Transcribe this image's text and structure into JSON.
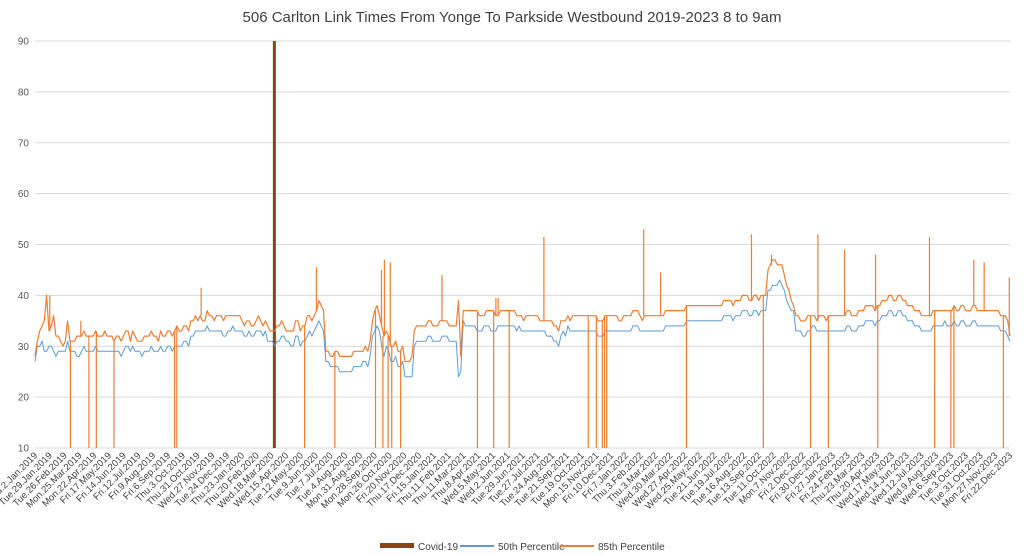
{
  "chart_data": {
    "type": "line",
    "title": "506 Carlton Link Times From Yonge To Parkside Westbound 2019-2023 8 to 9am",
    "xlabel": "",
    "ylabel": "",
    "ylim": [
      10,
      90
    ],
    "yticks": [
      10,
      20,
      30,
      40,
      50,
      60,
      70,
      80,
      90
    ],
    "grid": true,
    "legend_position": "bottom",
    "colors": {
      "covid": "#8B4513",
      "p50": "#5B9BD5",
      "p85": "#ED7D31"
    },
    "x_tick_labels": [
      "Wed.2.Jan.2019",
      "Tue.29.Jan.2019",
      "Tue.26.Feb.2019",
      "Mon.25.Mar.2019",
      "Mon.22.Apr.2019",
      "Fri.17.May.2019",
      "Fri.14.Jun.2019",
      "Fri.12.Jul.2019",
      "Fri.9.Aug.2019",
      "Fri.6.Sep.2019",
      "Thu.3.Oct.2019",
      "Thu.31.Oct.2019",
      "Wed.27.Nov.2019",
      "Tue.24.Dec.2019",
      "Thu.23.Jan.2020",
      "Thu.20.Feb.2020",
      "Wed.18.Mar.2020",
      "Wed.15.Apr.2020",
      "Tue.12.May.2020",
      "Tue.9.Jun.2020",
      "Tue.7.Jul.2020",
      "Tue.4.Aug.2020",
      "Mon.31.Aug.2020",
      "Mon.28.Sep.2020",
      "Mon.26.Oct.2020",
      "Fri.20.Nov.2020",
      "Thu.17.Dec.2020",
      "Fri.15.Jan.2021",
      "Thu.11.Feb.2021",
      "Thu.11.Mar.2021",
      "Thu.8.Apr.2021",
      "Wed.5.May.2021",
      "Wed.2.Jun.2021",
      "Tue.29.Jun.2021",
      "Tue.27.Jul.2021",
      "Tue.24.Aug.2021",
      "Tue.21.Sep.2021",
      "Tue.19.Oct.2021",
      "Mon.15.Nov.2021",
      "Fri.10.Dec.2021",
      "Fri.7.Jan.2022",
      "Thu.3.Feb.2022",
      "Thu.3.Mar.2022",
      "Wed.30.Mar.2022",
      "Wed.27.Apr.2022",
      "Wed.25.May.2022",
      "Tue.21.Jun.2022",
      "Tue.19.Jul.2022",
      "Tue.16.Aug.2022",
      "Tue.13.Sep.2022",
      "Tue.11.Oct.2022",
      "Mon.7.Nov.2022",
      "Fri.2.Dec.2022",
      "Fri.30.Dec.2022",
      "Fri.27.Jan.2023",
      "Fri.24.Feb.2023",
      "Thu.23.Mar.2023",
      "Thu.20.Apr.2023",
      "Wed.17.May.2023",
      "Wed.14.Jun.2023",
      "Wed.12.Jul.2023",
      "Wed.9.Aug.2023",
      "Wed.6.Sep.2023",
      "Tue.3.Oct.2023",
      "Tue.31.Oct.2023",
      "Mon.27.Nov.2023",
      "Fri.22.Dec.2023"
    ],
    "covid_marker": {
      "x": "Wed.18.Mar.2020",
      "ymin": 10,
      "ymax": 90
    },
    "series": [
      {
        "name": "50th Percentile",
        "values": [
          27,
          30,
          30,
          31,
          29,
          29,
          30,
          30,
          29,
          28,
          29,
          29,
          29,
          29,
          31,
          29,
          29,
          29,
          28,
          28,
          29,
          30,
          29,
          29,
          29,
          29,
          30,
          29,
          29,
          29,
          29,
          29,
          29,
          29,
          29,
          29,
          29,
          28,
          29,
          30,
          30,
          29,
          30,
          29,
          29,
          29,
          28,
          29,
          29,
          29,
          30,
          29,
          29,
          29,
          30,
          29,
          29,
          30,
          30,
          29,
          30,
          30,
          30,
          30,
          31,
          31,
          30,
          32,
          32,
          33,
          33,
          33,
          33,
          33,
          34,
          33,
          33,
          33,
          33,
          33,
          33,
          32,
          32,
          33,
          33,
          34,
          33,
          33,
          33,
          33,
          32,
          32,
          33,
          32,
          32,
          33,
          33,
          33,
          32,
          33,
          31,
          31,
          31,
          30,
          31,
          31,
          32,
          32,
          31,
          31,
          30,
          30,
          32,
          32,
          30,
          31,
          31,
          32,
          33,
          32,
          33,
          34,
          35,
          34,
          33,
          27,
          27,
          26,
          26,
          26,
          26,
          25,
          25,
          25,
          25,
          25,
          25,
          26,
          26,
          26,
          26,
          27,
          27,
          26,
          28,
          32,
          33,
          34,
          33,
          30,
          28,
          30,
          29,
          27,
          27,
          28,
          26,
          26,
          27,
          24,
          24,
          24,
          24,
          30,
          31,
          31,
          31,
          31,
          31,
          32,
          32,
          31,
          31,
          31,
          31,
          32,
          32,
          32,
          31,
          31,
          31,
          31,
          24,
          25,
          35,
          34,
          34,
          34,
          34,
          34,
          33,
          33,
          33,
          34,
          34,
          34,
          33,
          33,
          33,
          34,
          34,
          34,
          34,
          34,
          34,
          34,
          34,
          33,
          34,
          33,
          33,
          33,
          33,
          33,
          33,
          33,
          33,
          33,
          33,
          33,
          32,
          32,
          32,
          31,
          31,
          30,
          32,
          33,
          32,
          34,
          33,
          33,
          33,
          33,
          33,
          33,
          33,
          33,
          33,
          33,
          33,
          33,
          32,
          32,
          32,
          33,
          33,
          33,
          33,
          33,
          33,
          33,
          33,
          33,
          33,
          33,
          33,
          34,
          34,
          34,
          33,
          33,
          33,
          33,
          33,
          33,
          33,
          33,
          33,
          33,
          33,
          34,
          34,
          34,
          34,
          34,
          34,
          34,
          34,
          34,
          35,
          35,
          35,
          35,
          35,
          35,
          35,
          35,
          35,
          35,
          35,
          35,
          35,
          35,
          35,
          35,
          36,
          36,
          36,
          36,
          35,
          36,
          36,
          36,
          37,
          37,
          37,
          36,
          36,
          37,
          37,
          36,
          37,
          37,
          37,
          41,
          41,
          42,
          42,
          42,
          43,
          42,
          41,
          39,
          38,
          37,
          37,
          33,
          33,
          33,
          32,
          32,
          33,
          33,
          34,
          34,
          33,
          33,
          33,
          33,
          33,
          33,
          33,
          33,
          33,
          33,
          33,
          33,
          33,
          34,
          34,
          33,
          33,
          33,
          34,
          34,
          34,
          35,
          35,
          35,
          35,
          34,
          35,
          35,
          36,
          36,
          36,
          37,
          37,
          36,
          36,
          37,
          37,
          36,
          36,
          35,
          35,
          35,
          34,
          34,
          34,
          33,
          33,
          33,
          33,
          33,
          34,
          34,
          34,
          34,
          34,
          35,
          34,
          34,
          34,
          35,
          34,
          34,
          35,
          35,
          34,
          34,
          34,
          35,
          35,
          34,
          34,
          34,
          34,
          34,
          34,
          34,
          34,
          34,
          34,
          33,
          33,
          33,
          32,
          31
        ]
      },
      {
        "name": "85th Percentile",
        "values": [
          28,
          31,
          33,
          34,
          35,
          40,
          33,
          34,
          36,
          32,
          32,
          31,
          30,
          31,
          35,
          31,
          31,
          31,
          32,
          32,
          32,
          33,
          32,
          32,
          32,
          32,
          33,
          32,
          32,
          32,
          33,
          32,
          32,
          32,
          31,
          32,
          32,
          31,
          32,
          33,
          33,
          31,
          33,
          32,
          31,
          31,
          31,
          32,
          32,
          32,
          33,
          32,
          32,
          31,
          33,
          32,
          32,
          33,
          33,
          32,
          33,
          34,
          33,
          33,
          34,
          34,
          33,
          35,
          35,
          36,
          35,
          36,
          35,
          35,
          37,
          36,
          36,
          35,
          36,
          36,
          36,
          35,
          36,
          36,
          36,
          36,
          36,
          36,
          36,
          35,
          34,
          35,
          35,
          34,
          34,
          35,
          36,
          35,
          34,
          35,
          34,
          33,
          33,
          33,
          34,
          34,
          35,
          34,
          33,
          33,
          33,
          33,
          35,
          35,
          33,
          34,
          34,
          36,
          36,
          35,
          36,
          37,
          39,
          38,
          37,
          29,
          29,
          28,
          28,
          29,
          29,
          28,
          28,
          28,
          28,
          28,
          28,
          29,
          29,
          29,
          29,
          29,
          30,
          29,
          31,
          35,
          37,
          38,
          36,
          34,
          32,
          33,
          32,
          30,
          30,
          31,
          29,
          29,
          30,
          27,
          27,
          27,
          28,
          33,
          34,
          34,
          34,
          34,
          34,
          35,
          35,
          34,
          34,
          34,
          35,
          35,
          35,
          35,
          34,
          34,
          34,
          34,
          39,
          28,
          37,
          37,
          37,
          37,
          37,
          37,
          37,
          36,
          36,
          36,
          37,
          37,
          37,
          37,
          36,
          36,
          37,
          37,
          37,
          37,
          37,
          37,
          37,
          36,
          36,
          36,
          35,
          36,
          36,
          36,
          36,
          36,
          36,
          35,
          35,
          35,
          35,
          35,
          35,
          34,
          34,
          33,
          35,
          35,
          35,
          36,
          35,
          36,
          36,
          36,
          36,
          36,
          36,
          36,
          36,
          36,
          36,
          36,
          35,
          35,
          35,
          36,
          36,
          36,
          36,
          36,
          36,
          35,
          35,
          36,
          36,
          36,
          36,
          37,
          37,
          37,
          36,
          35,
          36,
          36,
          36,
          36,
          36,
          36,
          36,
          36,
          36,
          37,
          37,
          37,
          37,
          37,
          37,
          37,
          37,
          37,
          38,
          38,
          38,
          38,
          38,
          38,
          38,
          38,
          38,
          38,
          38,
          38,
          38,
          38,
          38,
          38,
          39,
          39,
          39,
          39,
          38,
          39,
          39,
          39,
          40,
          40,
          40,
          39,
          39,
          40,
          40,
          39,
          40,
          40,
          40,
          45,
          46,
          47,
          47,
          46,
          46,
          46,
          44,
          42,
          41,
          39,
          38,
          36,
          36,
          35,
          35,
          35,
          36,
          36,
          36,
          36,
          35,
          36,
          36,
          36,
          35,
          36,
          36,
          36,
          36,
          36,
          36,
          36,
          36,
          37,
          37,
          36,
          36,
          36,
          37,
          37,
          37,
          38,
          38,
          38,
          38,
          37,
          38,
          38,
          39,
          39,
          39,
          40,
          40,
          39,
          39,
          40,
          40,
          39,
          39,
          38,
          38,
          38,
          37,
          37,
          37,
          36,
          36,
          36,
          36,
          36,
          37,
          37,
          37,
          37,
          37,
          37,
          37,
          37,
          37,
          38,
          37,
          37,
          38,
          38,
          37,
          37,
          37,
          38,
          38,
          37,
          37,
          37,
          37,
          37,
          37,
          37,
          37,
          37,
          37,
          36,
          36,
          36,
          35,
          32
        ]
      }
    ],
    "p85_spikes": [
      {
        "x": 1.0,
        "y": 40
      },
      {
        "x": 2.4,
        "y": 10
      },
      {
        "x": 3.1,
        "y": 35
      },
      {
        "x": 3.65,
        "y": 10
      },
      {
        "x": 4.15,
        "y": 10
      },
      {
        "x": 5.35,
        "y": 10
      },
      {
        "x": 9.45,
        "y": 10
      },
      {
        "x": 9.6,
        "y": 10
      },
      {
        "x": 11.25,
        "y": 41.5
      },
      {
        "x": 18.25,
        "y": 10
      },
      {
        "x": 19.05,
        "y": 45.5
      },
      {
        "x": 20.3,
        "y": 10
      },
      {
        "x": 23.05,
        "y": 10
      },
      {
        "x": 23.45,
        "y": 45
      },
      {
        "x": 23.55,
        "y": 10
      },
      {
        "x": 23.65,
        "y": 47
      },
      {
        "x": 23.9,
        "y": 10
      },
      {
        "x": 24.05,
        "y": 46.5
      },
      {
        "x": 24.15,
        "y": 10
      },
      {
        "x": 24.75,
        "y": 10
      },
      {
        "x": 27.55,
        "y": 44
      },
      {
        "x": 29.95,
        "y": 10
      },
      {
        "x": 31.05,
        "y": 10
      },
      {
        "x": 31.2,
        "y": 39.5
      },
      {
        "x": 31.35,
        "y": 39.5
      },
      {
        "x": 32.1,
        "y": 10
      },
      {
        "x": 34.45,
        "y": 51.5
      },
      {
        "x": 37.45,
        "y": 10
      },
      {
        "x": 38.0,
        "y": 10
      },
      {
        "x": 38.4,
        "y": 10
      },
      {
        "x": 38.55,
        "y": 10
      },
      {
        "x": 38.7,
        "y": 10
      },
      {
        "x": 41.2,
        "y": 53
      },
      {
        "x": 42.35,
        "y": 44.5
      },
      {
        "x": 44.1,
        "y": 10
      },
      {
        "x": 48.5,
        "y": 52
      },
      {
        "x": 49.3,
        "y": 10
      },
      {
        "x": 49.85,
        "y": 48
      },
      {
        "x": 52.5,
        "y": 10
      },
      {
        "x": 53.0,
        "y": 52
      },
      {
        "x": 53.7,
        "y": 10
      },
      {
        "x": 54.8,
        "y": 49
      },
      {
        "x": 56.9,
        "y": 48
      },
      {
        "x": 57.05,
        "y": 10
      },
      {
        "x": 60.55,
        "y": 51.5
      },
      {
        "x": 60.9,
        "y": 10
      },
      {
        "x": 62.0,
        "y": 10
      },
      {
        "x": 62.2,
        "y": 10
      },
      {
        "x": 63.55,
        "y": 47
      },
      {
        "x": 64.25,
        "y": 46.5
      },
      {
        "x": 65.55,
        "y": 10
      },
      {
        "x": 65.95,
        "y": 43.5
      }
    ]
  },
  "legend": {
    "covid_label": "Covid-19",
    "p50_label": "50th Percentile",
    "p85_label": "85th Percentile"
  }
}
